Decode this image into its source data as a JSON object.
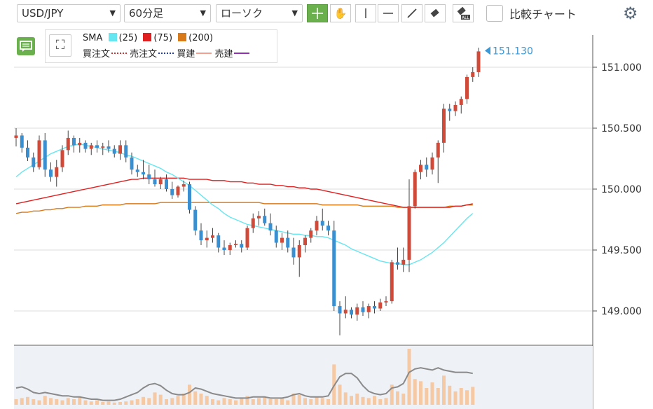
{
  "toolbar": {
    "symbol": "USD/JPY",
    "timeframe": "60分足",
    "chart_style": "ローソク",
    "compare_label": "比較チャート",
    "colors": {
      "active_tool": "#6ab04c"
    },
    "tools": [
      "crosshair-icon",
      "hand-icon",
      "vertical-line-icon",
      "horizontal-line-icon",
      "trendline-icon",
      "eraser-icon",
      "erase-all-icon"
    ]
  },
  "legend": {
    "sma_label": "SMA",
    "sma1": "(25)",
    "sma2": "(75)",
    "sma3": "(200)",
    "buy_order": "買注文",
    "sell_order": "売注文",
    "buy_position": "買建",
    "sell_position": "売建",
    "colors": {
      "sma25": "#66e6f0",
      "sma75": "#e02020",
      "sma200": "#d97a1a",
      "buy_order": "#d03030",
      "sell_order": "#2040a0",
      "buy_position": "#f0a090",
      "sell_position": "#9030b0"
    }
  },
  "chart_data": {
    "type": "candlestick",
    "current_price": "151.130",
    "y_tick_labels": [
      "151.000",
      "150.500",
      "150.000",
      "149.500",
      "149.000"
    ],
    "y_ticks": [
      151.0,
      150.5,
      150.0,
      149.5,
      149.0
    ],
    "ylim": [
      148.7,
      151.4
    ],
    "colors": {
      "up": "#d04a3a",
      "down": "#3a8fd0",
      "price_tag": "#3a9ad9"
    },
    "candles": [
      [
        150.42,
        150.5,
        150.35,
        150.44
      ],
      [
        150.44,
        150.46,
        150.3,
        150.34
      ],
      [
        150.34,
        150.4,
        150.23,
        150.26
      ],
      [
        150.26,
        150.3,
        150.14,
        150.18
      ],
      [
        150.18,
        150.44,
        150.16,
        150.4
      ],
      [
        150.4,
        150.46,
        150.1,
        150.16
      ],
      [
        150.16,
        150.22,
        150.06,
        150.1
      ],
      [
        150.1,
        150.24,
        150.02,
        150.18
      ],
      [
        150.18,
        150.36,
        150.14,
        150.32
      ],
      [
        150.32,
        150.48,
        150.28,
        150.42
      ],
      [
        150.42,
        150.44,
        150.3,
        150.36
      ],
      [
        150.36,
        150.42,
        150.3,
        150.38
      ],
      [
        150.38,
        150.4,
        150.3,
        150.33
      ],
      [
        150.33,
        150.38,
        150.28,
        150.36
      ],
      [
        150.36,
        150.4,
        150.3,
        150.34
      ],
      [
        150.34,
        150.38,
        150.28,
        150.35
      ],
      [
        150.35,
        150.4,
        150.3,
        150.33
      ],
      [
        150.33,
        150.36,
        150.26,
        150.29
      ],
      [
        150.29,
        150.4,
        150.24,
        150.36
      ],
      [
        150.36,
        150.4,
        150.22,
        150.26
      ],
      [
        150.26,
        150.3,
        150.12,
        150.16
      ],
      [
        150.16,
        150.2,
        150.1,
        150.14
      ],
      [
        150.14,
        150.24,
        150.08,
        150.12
      ],
      [
        150.12,
        150.2,
        150.04,
        150.08
      ],
      [
        150.08,
        150.16,
        150.02,
        150.04
      ],
      [
        150.04,
        150.1,
        150.0,
        150.08
      ],
      [
        150.08,
        150.12,
        149.98,
        150.0
      ],
      [
        150.0,
        150.06,
        149.92,
        149.95
      ],
      [
        149.95,
        150.03,
        149.93,
        150.02
      ],
      [
        150.02,
        150.07,
        149.98,
        150.04
      ],
      [
        150.04,
        150.06,
        149.8,
        149.83
      ],
      [
        149.83,
        149.86,
        149.62,
        149.66
      ],
      [
        149.66,
        149.72,
        149.54,
        149.58
      ],
      [
        149.58,
        149.66,
        149.52,
        149.6
      ],
      [
        149.6,
        149.68,
        149.56,
        149.62
      ],
      [
        149.62,
        149.64,
        149.48,
        149.52
      ],
      [
        149.52,
        149.58,
        149.46,
        149.5
      ],
      [
        149.5,
        149.56,
        149.46,
        149.54
      ],
      [
        149.54,
        149.58,
        149.52,
        149.55
      ],
      [
        149.55,
        149.58,
        149.48,
        149.52
      ],
      [
        149.52,
        149.7,
        149.5,
        149.68
      ],
      [
        149.68,
        149.8,
        149.64,
        149.76
      ],
      [
        149.76,
        149.82,
        149.7,
        149.78
      ],
      [
        149.78,
        149.84,
        149.7,
        149.72
      ],
      [
        149.72,
        149.8,
        149.62,
        149.66
      ],
      [
        149.66,
        149.7,
        149.52,
        149.56
      ],
      [
        149.56,
        149.64,
        149.5,
        149.6
      ],
      [
        149.6,
        149.66,
        149.48,
        149.52
      ],
      [
        149.52,
        149.6,
        149.38,
        149.44
      ],
      [
        149.44,
        149.58,
        149.28,
        149.54
      ],
      [
        149.54,
        149.62,
        149.48,
        149.6
      ],
      [
        149.6,
        149.68,
        149.56,
        149.66
      ],
      [
        149.66,
        149.78,
        149.62,
        149.74
      ],
      [
        149.74,
        149.84,
        149.66,
        149.7
      ],
      [
        149.7,
        149.74,
        149.62,
        149.66
      ],
      [
        149.66,
        149.74,
        149.0,
        149.04
      ],
      [
        149.04,
        149.08,
        148.8,
        148.98
      ],
      [
        148.98,
        149.12,
        148.94,
        149.01
      ],
      [
        149.01,
        149.03,
        148.94,
        148.97
      ],
      [
        148.97,
        149.06,
        148.92,
        149.03
      ],
      [
        149.03,
        149.08,
        148.96,
        148.99
      ],
      [
        148.99,
        149.06,
        148.94,
        149.04
      ],
      [
        149.04,
        149.08,
        148.98,
        149.02
      ],
      [
        149.02,
        149.1,
        149.0,
        149.07
      ],
      [
        149.07,
        149.12,
        149.04,
        149.08
      ],
      [
        149.08,
        149.42,
        149.06,
        149.4
      ],
      [
        149.4,
        149.52,
        149.34,
        149.38
      ],
      [
        149.38,
        149.52,
        149.32,
        149.42
      ],
      [
        149.42,
        150.08,
        149.32,
        149.86
      ],
      [
        149.86,
        150.16,
        149.84,
        150.14
      ],
      [
        150.14,
        150.24,
        150.08,
        150.2
      ],
      [
        150.2,
        150.26,
        150.1,
        150.16
      ],
      [
        150.16,
        150.3,
        150.12,
        150.26
      ],
      [
        150.26,
        150.4,
        150.05,
        150.38
      ],
      [
        150.38,
        150.7,
        150.3,
        150.66
      ],
      [
        150.66,
        150.7,
        150.56,
        150.64
      ],
      [
        150.64,
        150.72,
        150.6,
        150.69
      ],
      [
        150.69,
        150.76,
        150.62,
        150.74
      ],
      [
        150.74,
        150.94,
        150.7,
        150.92
      ],
      [
        150.92,
        151.0,
        150.88,
        150.96
      ],
      [
        150.96,
        151.16,
        150.92,
        151.13
      ]
    ],
    "sma25": [
      150.1,
      150.14,
      150.17,
      150.2,
      150.23,
      150.26,
      150.29,
      150.31,
      150.33,
      150.35,
      150.36,
      150.37,
      150.36,
      150.35,
      150.34,
      150.33,
      150.32,
      150.31,
      150.3,
      150.28,
      150.27,
      150.25,
      150.23,
      150.21,
      150.19,
      150.17,
      150.14,
      150.12,
      150.09,
      150.06,
      150.03,
      149.99,
      149.95,
      149.91,
      149.87,
      149.84,
      149.8,
      149.77,
      149.75,
      149.73,
      149.71,
      149.7,
      149.69,
      149.68,
      149.67,
      149.66,
      149.65,
      149.64,
      149.63,
      149.63,
      149.62,
      149.62,
      149.61,
      149.61,
      149.6,
      149.58,
      149.56,
      149.54,
      149.51,
      149.49,
      149.47,
      149.45,
      149.43,
      149.41,
      149.4,
      149.39,
      149.39,
      149.38,
      149.38,
      149.4,
      149.42,
      149.45,
      149.48,
      149.52,
      149.56,
      149.61,
      149.66,
      149.71,
      149.76,
      149.8
    ],
    "sma75": [
      149.88,
      149.89,
      149.9,
      149.91,
      149.92,
      149.93,
      149.94,
      149.95,
      149.96,
      149.97,
      149.98,
      149.99,
      150.0,
      150.01,
      150.02,
      150.03,
      150.04,
      150.05,
      150.06,
      150.07,
      150.08,
      150.08,
      150.09,
      150.09,
      150.09,
      150.09,
      150.09,
      150.09,
      150.09,
      150.09,
      150.08,
      150.08,
      150.08,
      150.08,
      150.07,
      150.07,
      150.07,
      150.06,
      150.06,
      150.06,
      150.05,
      150.05,
      150.04,
      150.04,
      150.04,
      150.03,
      150.03,
      150.02,
      150.02,
      150.01,
      150.01,
      150.0,
      150.0,
      149.99,
      149.98,
      149.97,
      149.96,
      149.95,
      149.94,
      149.93,
      149.92,
      149.91,
      149.9,
      149.89,
      149.88,
      149.87,
      149.86,
      149.85,
      149.85,
      149.85,
      149.85,
      149.85,
      149.85,
      149.85,
      149.85,
      149.85,
      149.86,
      149.86,
      149.87,
      149.88
    ],
    "sma200": [
      149.8,
      149.81,
      149.81,
      149.82,
      149.82,
      149.83,
      149.83,
      149.84,
      149.84,
      149.85,
      149.85,
      149.85,
      149.86,
      149.86,
      149.86,
      149.87,
      149.87,
      149.87,
      149.87,
      149.88,
      149.88,
      149.88,
      149.88,
      149.88,
      149.88,
      149.89,
      149.89,
      149.89,
      149.89,
      149.89,
      149.89,
      149.89,
      149.89,
      149.89,
      149.89,
      149.89,
      149.89,
      149.89,
      149.89,
      149.89,
      149.89,
      149.89,
      149.89,
      149.88,
      149.88,
      149.88,
      149.88,
      149.88,
      149.88,
      149.88,
      149.88,
      149.88,
      149.88,
      149.87,
      149.87,
      149.87,
      149.87,
      149.87,
      149.87,
      149.87,
      149.86,
      149.86,
      149.86,
      149.86,
      149.86,
      149.86,
      149.85,
      149.85,
      149.85,
      149.85,
      149.85,
      149.85,
      149.85,
      149.85,
      149.85,
      149.86,
      149.86,
      149.86,
      149.87,
      149.87
    ],
    "volume": [
      0.1,
      0.12,
      0.14,
      0.1,
      0.08,
      0.16,
      0.12,
      0.1,
      0.08,
      0.12,
      0.1,
      0.14,
      0.08,
      0.06,
      0.08,
      0.05,
      0.06,
      0.04,
      0.05,
      0.06,
      0.08,
      0.1,
      0.14,
      0.12,
      0.22,
      0.18,
      0.1,
      0.12,
      0.16,
      0.2,
      0.36,
      0.24,
      0.2,
      0.16,
      0.1,
      0.08,
      0.12,
      0.1,
      0.08,
      0.12,
      0.16,
      0.1,
      0.12,
      0.14,
      0.1,
      0.1,
      0.12,
      0.08,
      0.2,
      0.18,
      0.12,
      0.1,
      0.14,
      0.12,
      0.1,
      0.72,
      0.36,
      0.22,
      0.16,
      0.2,
      0.14,
      0.12,
      0.16,
      0.1,
      0.12,
      0.36,
      0.24,
      0.2,
      1.0,
      0.46,
      0.42,
      0.3,
      0.4,
      0.3,
      0.52,
      0.34,
      0.24,
      0.3,
      0.26,
      0.32
    ],
    "volume_line": [
      0.3,
      0.32,
      0.28,
      0.22,
      0.2,
      0.22,
      0.2,
      0.18,
      0.16,
      0.16,
      0.14,
      0.14,
      0.12,
      0.1,
      0.1,
      0.08,
      0.08,
      0.08,
      0.1,
      0.14,
      0.18,
      0.22,
      0.3,
      0.36,
      0.38,
      0.34,
      0.26,
      0.2,
      0.18,
      0.18,
      0.22,
      0.3,
      0.28,
      0.24,
      0.2,
      0.18,
      0.16,
      0.14,
      0.12,
      0.12,
      0.12,
      0.14,
      0.14,
      0.14,
      0.12,
      0.12,
      0.12,
      0.14,
      0.18,
      0.2,
      0.16,
      0.14,
      0.14,
      0.14,
      0.16,
      0.34,
      0.5,
      0.56,
      0.56,
      0.48,
      0.34,
      0.24,
      0.2,
      0.18,
      0.2,
      0.3,
      0.32,
      0.38,
      0.58,
      0.64,
      0.66,
      0.64,
      0.62,
      0.66,
      0.62,
      0.6,
      0.58,
      0.58,
      0.58,
      0.56
    ]
  }
}
